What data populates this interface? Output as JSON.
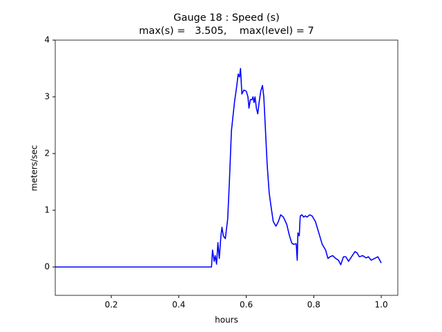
{
  "chart_data": {
    "type": "line",
    "title": "Gauge 18 : Speed (s)",
    "subtitle": "max(s) =   3.505,    max(level) = 7",
    "x_label": "hours",
    "y_label": "meters/sec",
    "xlim": [
      0.034,
      1.049
    ],
    "ylim": [
      -0.5,
      4
    ],
    "xticks": [
      0.2,
      0.4,
      0.6,
      0.8,
      {
        "value": 1,
        "label": "1.0"
      }
    ],
    "yticks": [
      0,
      1,
      2,
      3,
      4
    ],
    "grid": false,
    "series": [
      {
        "name": "s",
        "color": "#0000ff",
        "x": [
          0.034,
          0.497,
          0.5,
          0.505,
          0.508,
          0.512,
          0.516,
          0.52,
          0.525,
          0.528,
          0.532,
          0.538,
          0.545,
          0.55,
          0.556,
          0.565,
          0.572,
          0.576,
          0.58,
          0.583,
          0.587,
          0.593,
          0.6,
          0.605,
          0.608,
          0.612,
          0.617,
          0.62,
          0.623,
          0.626,
          0.63,
          0.634,
          0.638,
          0.643,
          0.648,
          0.652,
          0.657,
          0.662,
          0.668,
          0.675,
          0.68,
          0.688,
          0.695,
          0.702,
          0.71,
          0.72,
          0.728,
          0.735,
          0.74,
          0.748,
          0.751,
          0.753,
          0.757,
          0.76,
          0.765,
          0.77,
          0.775,
          0.78,
          0.788,
          0.795,
          0.805,
          0.815,
          0.825,
          0.835,
          0.842,
          0.848,
          0.856,
          0.865,
          0.873,
          0.88,
          0.888,
          0.895,
          0.903,
          0.912,
          0.922,
          0.928,
          0.935,
          0.945,
          0.955,
          0.962,
          0.97,
          0.98,
          0.99,
          1.0
        ],
        "values": [
          0,
          0,
          0.3,
          0.1,
          0.2,
          0.05,
          0.43,
          0.15,
          0.55,
          0.7,
          0.55,
          0.5,
          0.85,
          1.5,
          2.4,
          2.9,
          3.2,
          3.4,
          3.35,
          3.5,
          3.05,
          3.12,
          3.1,
          3.0,
          2.8,
          2.95,
          2.95,
          3.0,
          2.9,
          3.0,
          2.8,
          2.7,
          2.9,
          3.1,
          3.2,
          3.0,
          2.4,
          1.8,
          1.3,
          1.0,
          0.8,
          0.72,
          0.8,
          0.92,
          0.88,
          0.75,
          0.55,
          0.42,
          0.4,
          0.41,
          0.12,
          0.6,
          0.55,
          0.9,
          0.92,
          0.88,
          0.9,
          0.88,
          0.92,
          0.9,
          0.8,
          0.6,
          0.4,
          0.3,
          0.15,
          0.18,
          0.2,
          0.15,
          0.12,
          0.04,
          0.18,
          0.18,
          0.1,
          0.18,
          0.27,
          0.25,
          0.18,
          0.2,
          0.16,
          0.18,
          0.12,
          0.15,
          0.18,
          0.07
        ]
      }
    ]
  }
}
